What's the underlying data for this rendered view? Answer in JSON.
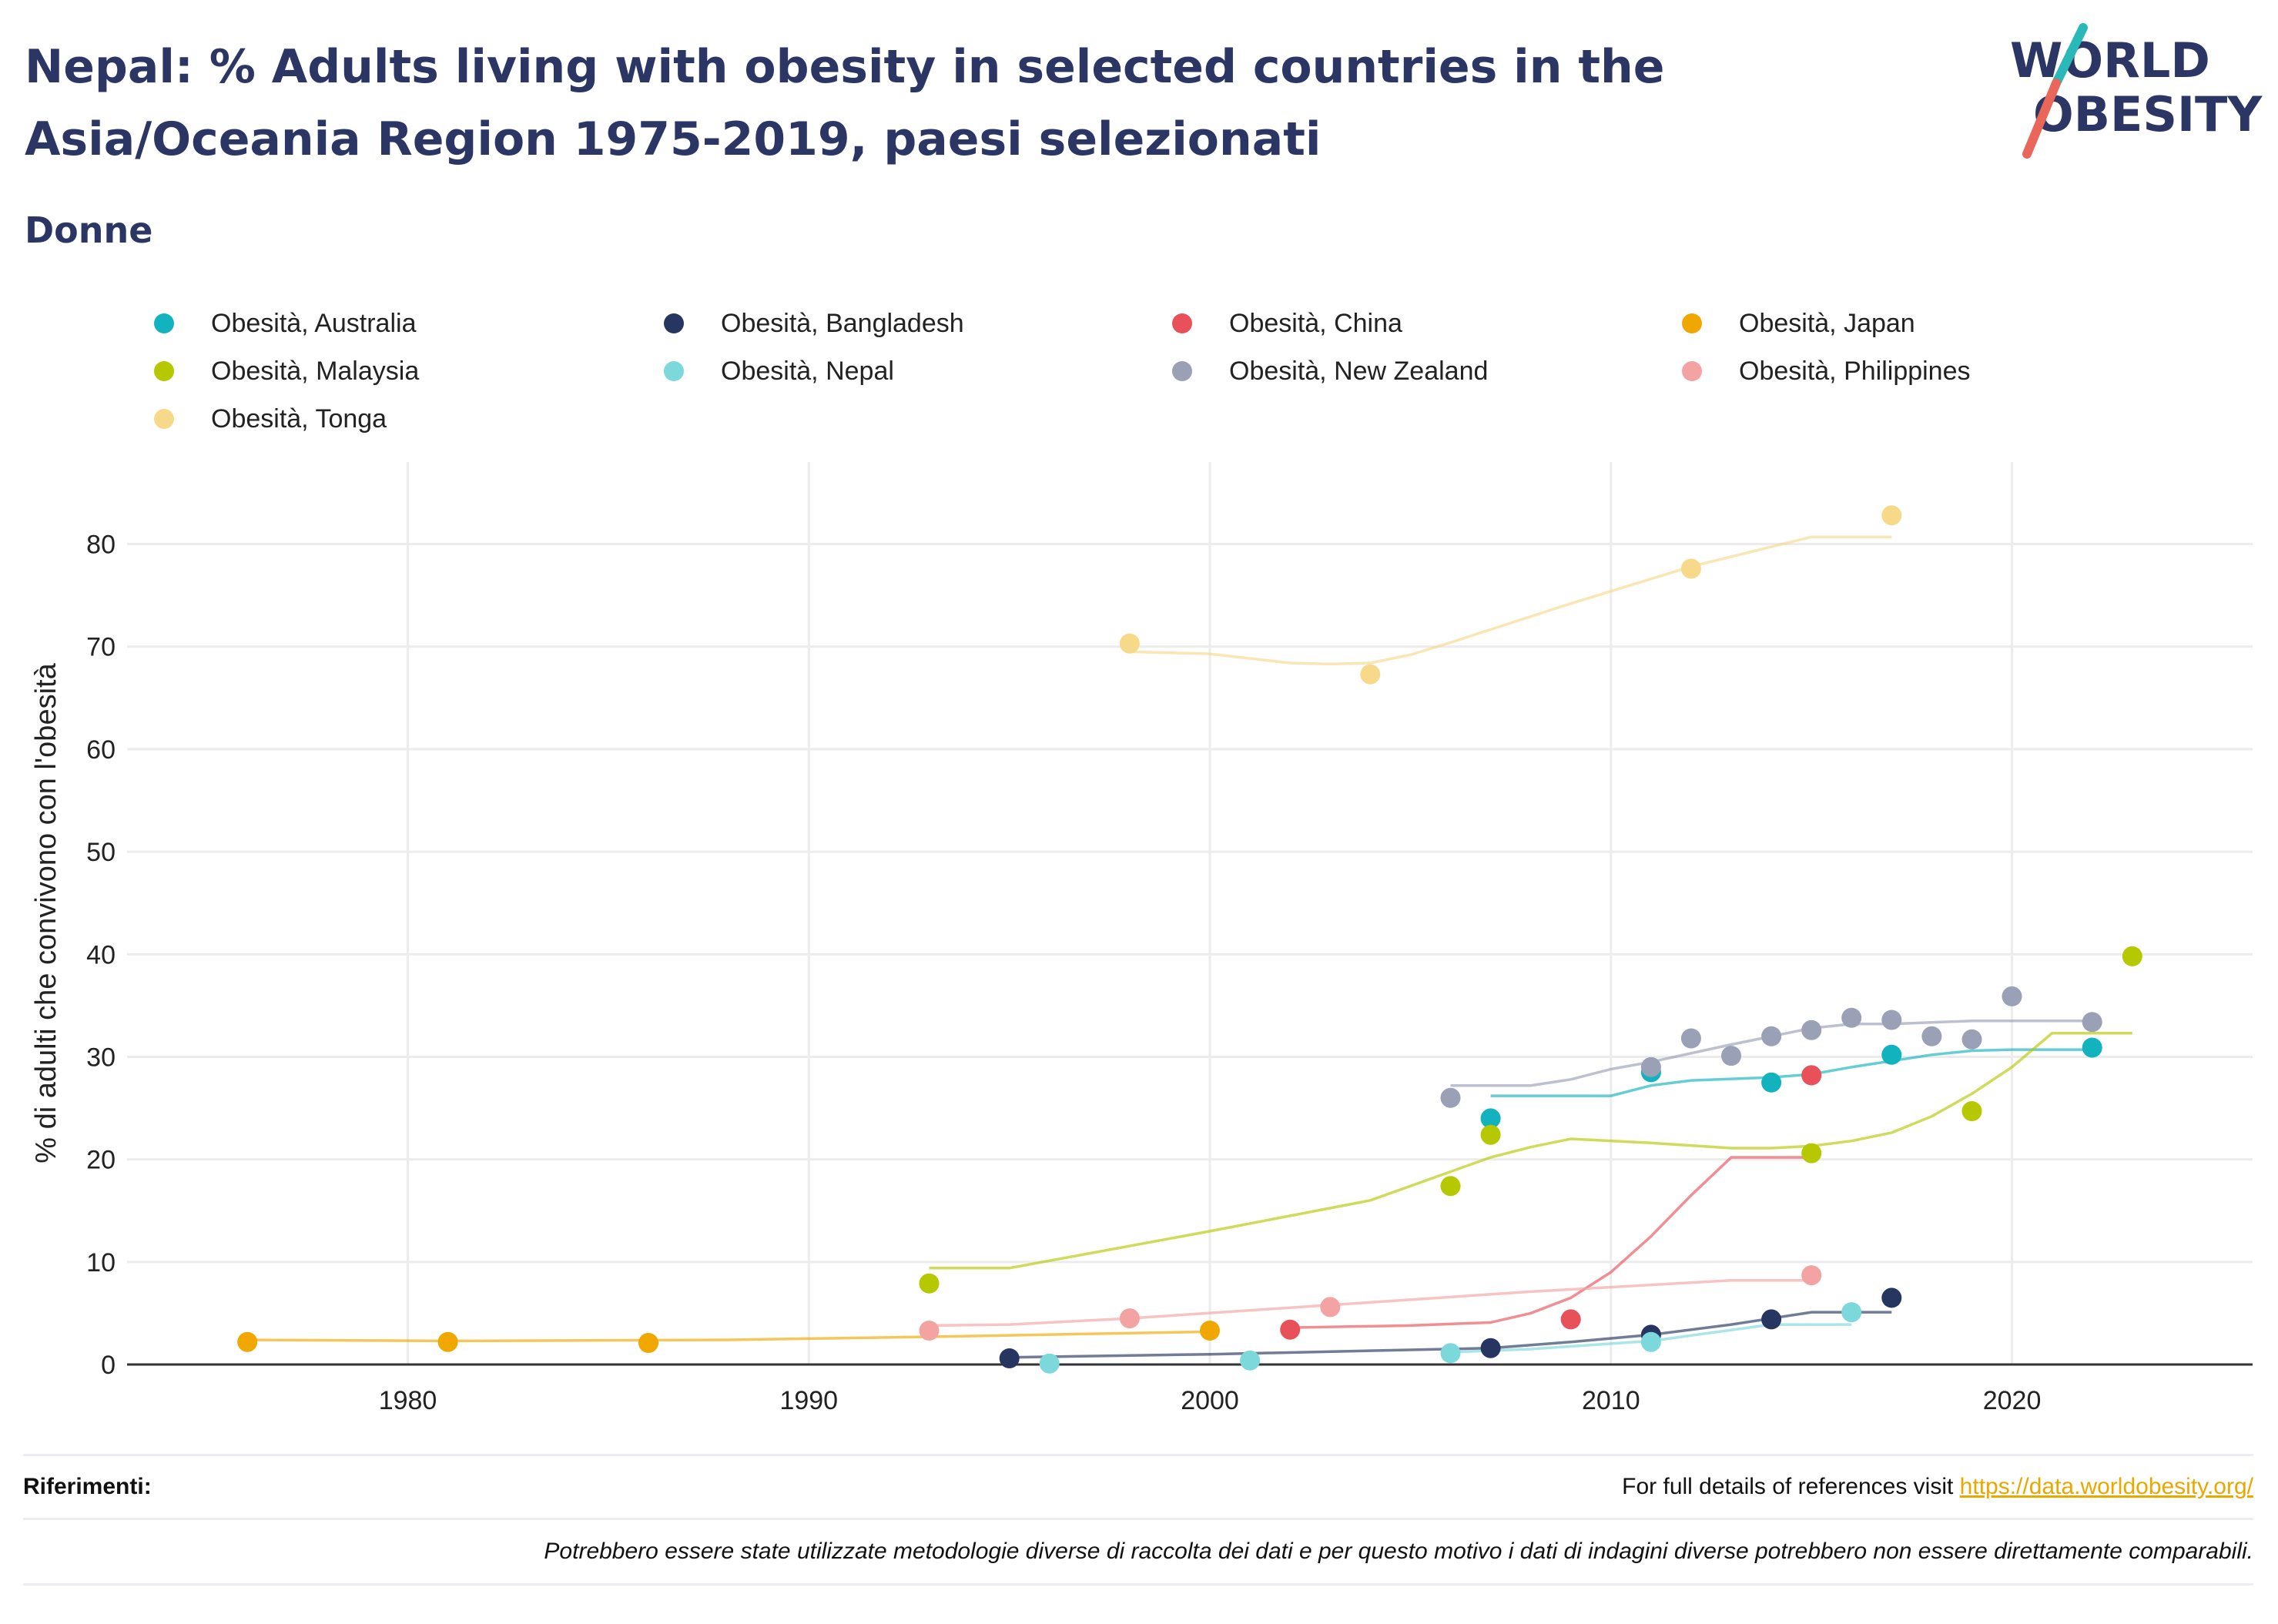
{
  "title": "Nepal: % Adults living with obesity in selected countries in the Asia/Oceania Region 1975-2019, paesi selezionati",
  "subtitle": "Donne",
  "logo": {
    "line1": "WORLD",
    "line2": "OBESITY",
    "text_color": "#2b3664",
    "slash_colors": [
      "#2bb8b8",
      "#e8675a"
    ]
  },
  "footer": {
    "references_label": "Riferimenti:",
    "references_text": "For full details of references visit ",
    "references_link": "https://data.worldobesity.org/",
    "disclaimer": "Potrebbero essere state utilizzate metodologie diverse di raccolta dei dati e per questo motivo i dati di indagini diverse potrebbero non essere direttamente comparabili."
  },
  "chart_data": {
    "type": "scatter",
    "title": "",
    "xlabel": "",
    "ylabel": "% di adulti che convivono con l'obesità",
    "xlim": [
      1973,
      2026
    ],
    "ylim": [
      0,
      88
    ],
    "xticks": [
      1980,
      1990,
      2000,
      2010,
      2020
    ],
    "yticks": [
      0,
      10,
      20,
      30,
      40,
      50,
      60,
      70,
      80
    ],
    "grid": true,
    "legend_position": "top",
    "series": [
      {
        "name": "Obesità, Australia",
        "color": "#12b3bf",
        "points": [
          [
            2007,
            24.0
          ],
          [
            2011,
            28.5
          ],
          [
            2014,
            27.5
          ],
          [
            2015,
            28.2
          ],
          [
            2017,
            30.2
          ],
          [
            2022,
            30.9
          ]
        ],
        "trend": [
          [
            2007,
            26.2
          ],
          [
            2010,
            26.2
          ],
          [
            2011,
            27.2
          ],
          [
            2012,
            27.7
          ],
          [
            2014,
            28.0
          ],
          [
            2015,
            28.3
          ],
          [
            2016,
            29.0
          ],
          [
            2017,
            29.6
          ],
          [
            2018,
            30.2
          ],
          [
            2019,
            30.6
          ],
          [
            2020,
            30.7
          ],
          [
            2022,
            30.7
          ]
        ]
      },
      {
        "name": "Obesità, Bangladesh",
        "color": "#263660",
        "points": [
          [
            1995,
            0.6
          ],
          [
            2007,
            1.6
          ],
          [
            2011,
            2.9
          ],
          [
            2014,
            4.4
          ],
          [
            2017,
            6.5
          ]
        ],
        "trend": [
          [
            1995,
            0.7
          ],
          [
            2000,
            1.0
          ],
          [
            2007,
            1.6
          ],
          [
            2009,
            2.2
          ],
          [
            2011,
            2.9
          ],
          [
            2013,
            3.9
          ],
          [
            2015,
            5.1
          ],
          [
            2017,
            5.1
          ]
        ]
      },
      {
        "name": "Obesità, China",
        "color": "#e8515a",
        "points": [
          [
            2002,
            3.4
          ],
          [
            2009,
            4.4
          ],
          [
            2015,
            28.2
          ]
        ],
        "trend": [
          [
            2002,
            3.6
          ],
          [
            2005,
            3.8
          ],
          [
            2007,
            4.1
          ],
          [
            2008,
            5.0
          ],
          [
            2009,
            6.5
          ],
          [
            2010,
            9.0
          ],
          [
            2011,
            12.5
          ],
          [
            2012,
            16.5
          ],
          [
            2013,
            20.2
          ],
          [
            2015,
            20.2
          ]
        ]
      },
      {
        "name": "Obesità, Japan",
        "color": "#f0a800",
        "points": [
          [
            1976,
            2.2
          ],
          [
            1981,
            2.2
          ],
          [
            1986,
            2.1
          ],
          [
            2000,
            3.3
          ]
        ],
        "trend": [
          [
            1976,
            2.4
          ],
          [
            1981,
            2.3
          ],
          [
            1988,
            2.4
          ],
          [
            1993,
            2.7
          ],
          [
            2000,
            3.2
          ]
        ]
      },
      {
        "name": "Obesità, Malaysia",
        "color": "#b5c800",
        "points": [
          [
            1993,
            7.9
          ],
          [
            2006,
            17.4
          ],
          [
            2007,
            22.4
          ],
          [
            2015,
            20.6
          ],
          [
            2019,
            24.7
          ],
          [
            2023,
            39.8
          ]
        ],
        "trend": [
          [
            1993,
            9.4
          ],
          [
            1995,
            9.4
          ],
          [
            2000,
            13.0
          ],
          [
            2004,
            16.0
          ],
          [
            2006,
            18.8
          ],
          [
            2007,
            20.2
          ],
          [
            2008,
            21.2
          ],
          [
            2009,
            22.0
          ],
          [
            2011,
            21.6
          ],
          [
            2013,
            21.1
          ],
          [
            2014,
            21.1
          ],
          [
            2015,
            21.3
          ],
          [
            2016,
            21.8
          ],
          [
            2017,
            22.6
          ],
          [
            2018,
            24.2
          ],
          [
            2019,
            26.4
          ],
          [
            2020,
            29.0
          ],
          [
            2021,
            32.3
          ],
          [
            2023,
            32.3
          ]
        ]
      },
      {
        "name": "Obesità, Nepal",
        "color": "#7dd8dc",
        "points": [
          [
            1996,
            0.1
          ],
          [
            2001,
            0.4
          ],
          [
            2006,
            1.1
          ],
          [
            2011,
            2.2
          ],
          [
            2016,
            5.1
          ]
        ],
        "trend": [
          [
            2006,
            1.2
          ],
          [
            2008,
            1.5
          ],
          [
            2011,
            2.3
          ],
          [
            2014,
            3.9
          ],
          [
            2016,
            3.9
          ]
        ]
      },
      {
        "name": "Obesità, New Zealand",
        "color": "#9aa0b6",
        "points": [
          [
            2006,
            26.0
          ],
          [
            2011,
            29.0
          ],
          [
            2012,
            31.8
          ],
          [
            2013,
            30.1
          ],
          [
            2014,
            32.0
          ],
          [
            2015,
            32.6
          ],
          [
            2016,
            33.8
          ],
          [
            2017,
            33.6
          ],
          [
            2018,
            32.0
          ],
          [
            2019,
            31.7
          ],
          [
            2020,
            35.9
          ],
          [
            2022,
            33.4
          ]
        ],
        "trend": [
          [
            2006,
            27.2
          ],
          [
            2008,
            27.2
          ],
          [
            2009,
            27.8
          ],
          [
            2010,
            28.8
          ],
          [
            2011,
            29.5
          ],
          [
            2013,
            31.2
          ],
          [
            2015,
            32.8
          ],
          [
            2016,
            33.2
          ],
          [
            2017,
            33.2
          ],
          [
            2019,
            33.5
          ],
          [
            2022,
            33.5
          ]
        ]
      },
      {
        "name": "Obesità, Philippines",
        "color": "#f4a3a3",
        "points": [
          [
            1993,
            3.3
          ],
          [
            1998,
            4.5
          ],
          [
            2003,
            5.6
          ],
          [
            2015,
            8.7
          ]
        ],
        "trend": [
          [
            1993,
            3.8
          ],
          [
            1995,
            3.9
          ],
          [
            1998,
            4.5
          ],
          [
            2003,
            5.8
          ],
          [
            2008,
            7.1
          ],
          [
            2013,
            8.2
          ],
          [
            2015,
            8.2
          ]
        ]
      },
      {
        "name": "Obesità, Tonga",
        "color": "#f7d98a",
        "points": [
          [
            1998,
            70.3
          ],
          [
            2004,
            67.3
          ],
          [
            2012,
            77.6
          ],
          [
            2017,
            82.8
          ]
        ],
        "trend": [
          [
            1998,
            69.5
          ],
          [
            2000,
            69.3
          ],
          [
            2002,
            68.4
          ],
          [
            2003,
            68.3
          ],
          [
            2004,
            68.4
          ],
          [
            2005,
            69.2
          ],
          [
            2006,
            70.4
          ],
          [
            2009,
            74.2
          ],
          [
            2012,
            77.8
          ],
          [
            2015,
            80.7
          ],
          [
            2017,
            80.7
          ]
        ]
      }
    ]
  }
}
